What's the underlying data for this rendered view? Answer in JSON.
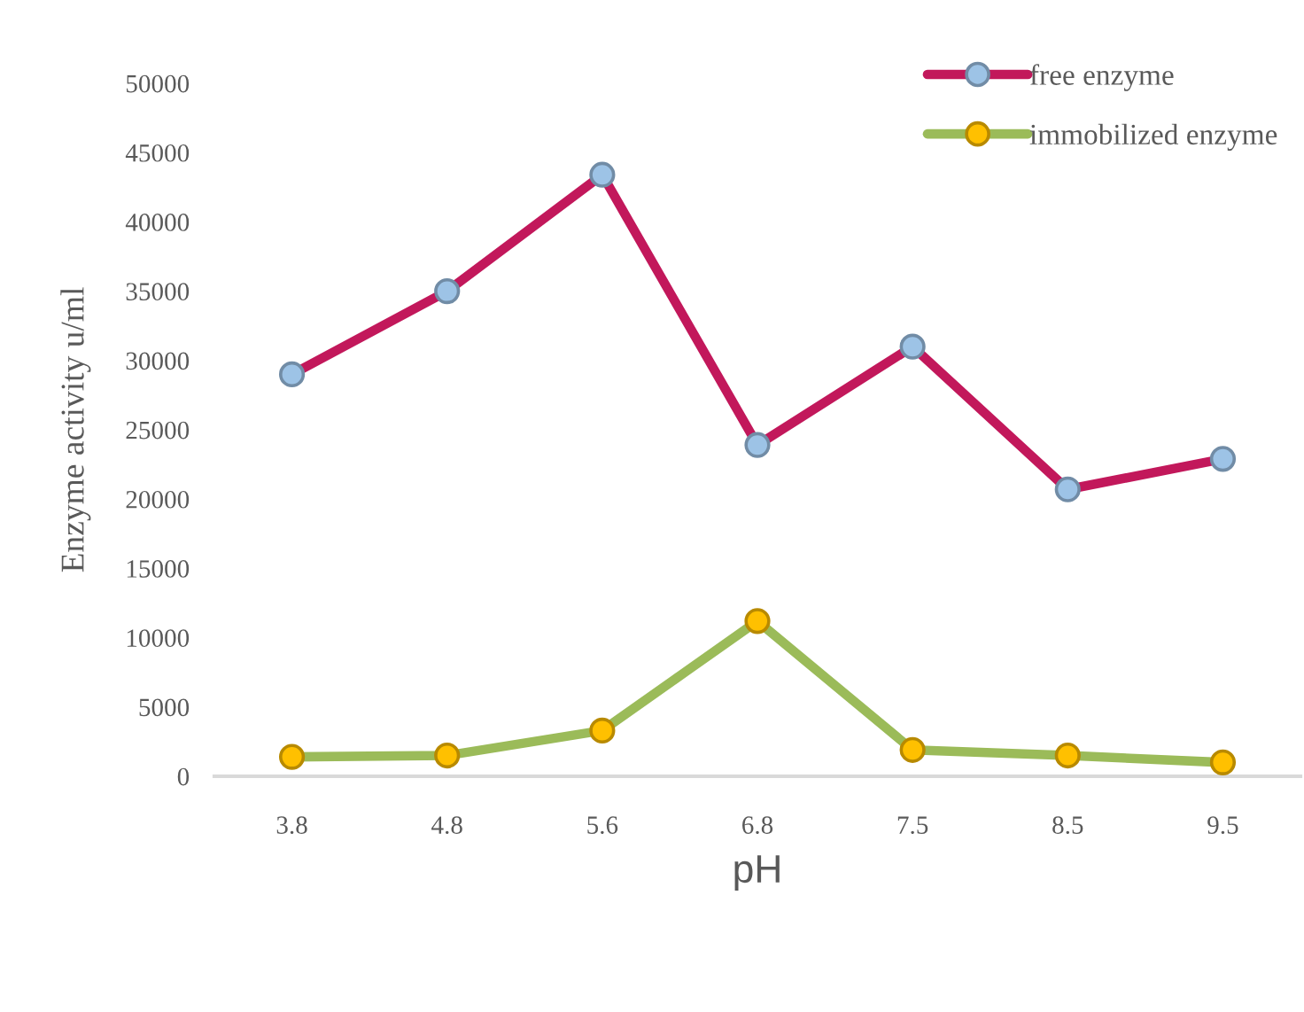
{
  "chart_data": {
    "type": "line",
    "xlabel": "pH",
    "ylabel": "Enzyme activity u/ml",
    "categories": [
      "3.8",
      "4.8",
      "5.6",
      "6.8",
      "7.5",
      "8.5",
      "9.5"
    ],
    "series": [
      {
        "name": "free enzyme",
        "color": "#c2185b",
        "colors": [
          "#9dc3e6",
          "#9dc3e6",
          "#9dc3e6",
          "#9dc3e6",
          "#9dc3e6",
          "#9dc3e6",
          "#9dc3e6"
        ],
        "values": [
          29000,
          35000,
          43400,
          23900,
          31000,
          20700,
          22900
        ]
      },
      {
        "name": "immobilized enzyme",
        "color": "#9bbb59",
        "colors": [
          "#ffc000",
          "#ffc000",
          "#ffc000",
          "#ffc000",
          "#ffc000",
          "#ffc000",
          "#ffc000"
        ],
        "values": [
          1400,
          1500,
          3300,
          11200,
          1900,
          1500,
          1000
        ]
      }
    ],
    "ylim": [
      0,
      50000
    ],
    "yticks": [
      0,
      5000,
      10000,
      15000,
      20000,
      25000,
      30000,
      35000,
      40000,
      45000,
      50000
    ],
    "grid": false,
    "legend": "top right",
    "marker": "circle",
    "line_style": "solid"
  }
}
